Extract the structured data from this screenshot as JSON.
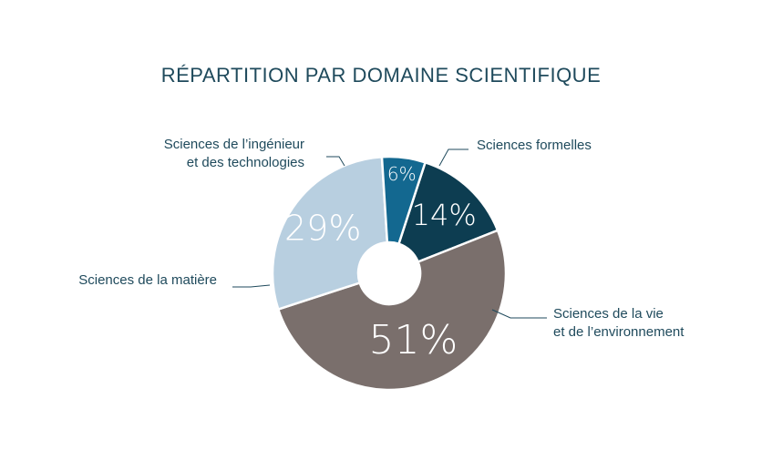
{
  "chart_data": {
    "type": "pie",
    "title": "RÉPARTITION PAR DOMAINE SCIENTIFIQUE",
    "categories": [
      "Sciences formelles",
      "Sciences de la vie et de l’environnement",
      "Sciences de la matière",
      "Sciences de l’ingénieur et des technologies"
    ],
    "label_lines": [
      [
        "Sciences formelles"
      ],
      [
        "Sciences de la vie",
        "et de l’environnement"
      ],
      [
        "Sciences de la matière"
      ],
      [
        "Sciences de l’ingénieur",
        "et des technologies"
      ]
    ],
    "values": [
      14,
      51,
      29,
      6
    ],
    "value_labels": [
      "14%",
      "51%",
      "29%",
      "6%"
    ],
    "colors": [
      "#0d3d51",
      "#7a6f6c",
      "#b8cfe0",
      "#136890"
    ],
    "donut": true,
    "legend": "none (direct labels)"
  }
}
